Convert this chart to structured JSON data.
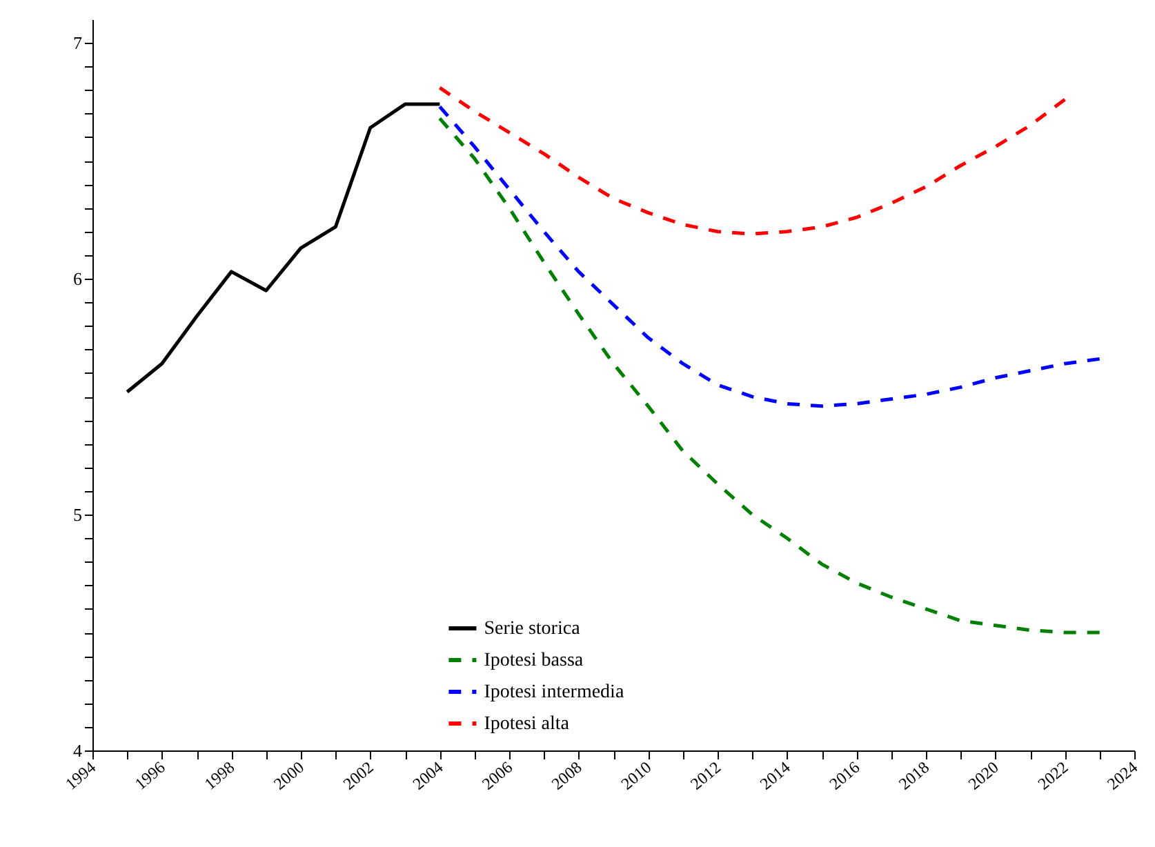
{
  "chart_data": {
    "type": "line",
    "xlim": [
      1994,
      2024
    ],
    "xticks": [
      1994,
      {
        "value": 1995,
        "label": null
      },
      1996,
      {
        "value": 1997,
        "label": null
      },
      1998,
      {
        "value": 1999,
        "label": null
      },
      2000,
      {
        "value": 2001,
        "label": null
      },
      2002,
      {
        "value": 2003,
        "label": null
      },
      2004,
      {
        "value": 2005,
        "label": null
      },
      2006,
      {
        "value": 2007,
        "label": null
      },
      2008,
      {
        "value": 2009,
        "label": null
      },
      2010,
      {
        "value": 2011,
        "label": null
      },
      2012,
      {
        "value": 2013,
        "label": null
      },
      2014,
      {
        "value": 2015,
        "label": null
      },
      2016,
      {
        "value": 2017,
        "label": null
      },
      2018,
      {
        "value": 2019,
        "label": null
      },
      2020,
      {
        "value": 2021,
        "label": null
      },
      2022,
      {
        "value": 2023,
        "label": null
      },
      2024
    ],
    "ylim": [
      4,
      7.1
    ],
    "yticks": [
      4,
      {
        "value": 4.1,
        "label": null
      },
      {
        "value": 4.2,
        "label": null
      },
      {
        "value": 4.3,
        "label": null
      },
      {
        "value": 4.4,
        "label": null
      },
      {
        "value": 4.5,
        "label": null
      },
      {
        "value": 4.6,
        "label": null
      },
      {
        "value": 4.7,
        "label": null
      },
      {
        "value": 4.8,
        "label": null
      },
      {
        "value": 4.9,
        "label": null
      },
      5,
      {
        "value": 5.1,
        "label": null
      },
      {
        "value": 5.2,
        "label": null
      },
      {
        "value": 5.3,
        "label": null
      },
      {
        "value": 5.4,
        "label": null
      },
      {
        "value": 5.5,
        "label": null
      },
      {
        "value": 5.6,
        "label": null
      },
      {
        "value": 5.7,
        "label": null
      },
      {
        "value": 5.8,
        "label": null
      },
      {
        "value": 5.9,
        "label": null
      },
      6,
      {
        "value": 6.1,
        "label": null
      },
      {
        "value": 6.2,
        "label": null
      },
      {
        "value": 6.3,
        "label": null
      },
      {
        "value": 6.4,
        "label": null
      },
      {
        "value": 6.5,
        "label": null
      },
      {
        "value": 6.6,
        "label": null
      },
      {
        "value": 6.7,
        "label": null
      },
      {
        "value": 6.8,
        "label": null
      },
      {
        "value": 6.9,
        "label": null
      },
      7
    ],
    "grid": false,
    "legend": "bottom",
    "series": [
      {
        "name": "Serie storica",
        "color": "#000000",
        "line_style": "solid",
        "x": [
          1995,
          1996,
          1997,
          1998,
          1999,
          2000,
          2001,
          2002,
          2003,
          2004
        ],
        "values": [
          5.52,
          5.64,
          5.84,
          6.03,
          5.95,
          6.13,
          6.22,
          6.64,
          6.74,
          6.74
        ]
      },
      {
        "name": "Ipotesi bassa",
        "color": "#008000",
        "line_style": "dashed",
        "x": [
          2004,
          2005,
          2006,
          2007,
          2008,
          2009,
          2010,
          2011,
          2012,
          2013,
          2014,
          2015,
          2016,
          2017,
          2018,
          2019,
          2020,
          2021,
          2022,
          2023
        ],
        "values": [
          6.68,
          6.51,
          6.3,
          6.07,
          5.85,
          5.64,
          5.46,
          5.27,
          5.13,
          5.0,
          4.9,
          4.79,
          4.71,
          4.65,
          4.6,
          4.55,
          4.53,
          4.51,
          4.5,
          4.5
        ]
      },
      {
        "name": "Ipotesi intermedia",
        "color": "#0000ff",
        "line_style": "dashed",
        "x": [
          2004,
          2005,
          2006,
          2007,
          2008,
          2009,
          2010,
          2011,
          2012,
          2013,
          2014,
          2015,
          2016,
          2017,
          2018,
          2019,
          2020,
          2021,
          2022,
          2023
        ],
        "values": [
          6.73,
          6.56,
          6.38,
          6.2,
          6.03,
          5.89,
          5.75,
          5.64,
          5.55,
          5.5,
          5.47,
          5.46,
          5.47,
          5.49,
          5.51,
          5.54,
          5.58,
          5.61,
          5.64,
          5.66
        ]
      },
      {
        "name": "Ipotesi alta",
        "color": "#ff0000",
        "line_style": "dashed",
        "x": [
          2004,
          2005,
          2006,
          2007,
          2008,
          2009,
          2010,
          2011,
          2012,
          2013,
          2014,
          2015,
          2016,
          2017,
          2018,
          2019,
          2020,
          2021,
          2022
        ],
        "values": [
          6.81,
          6.71,
          6.62,
          6.53,
          6.43,
          6.34,
          6.28,
          6.23,
          6.2,
          6.19,
          6.2,
          6.22,
          6.26,
          6.32,
          6.39,
          6.48,
          6.56,
          6.65,
          6.76
        ]
      }
    ]
  }
}
